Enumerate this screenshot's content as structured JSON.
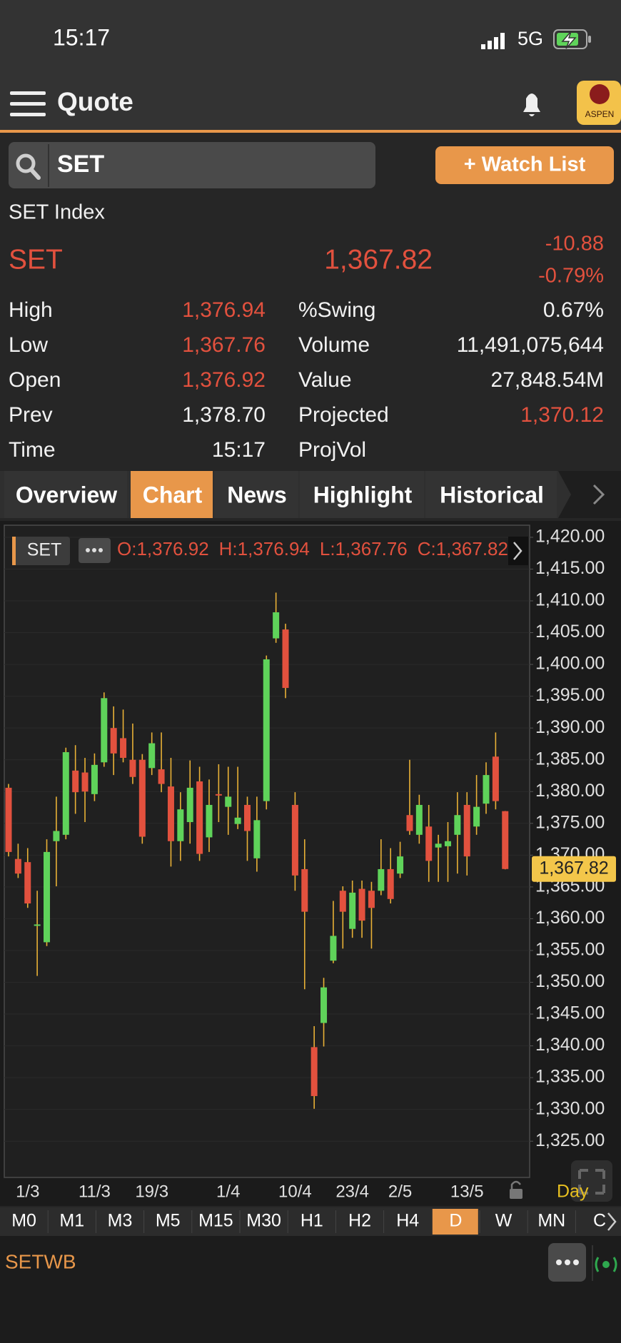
{
  "status_bar": {
    "time": "15:17",
    "network": "5G"
  },
  "header": {
    "title": "Quote",
    "logo": "ASPEN"
  },
  "search": {
    "query": "SET",
    "button": "+ Watch List"
  },
  "quote": {
    "name": "SET Index",
    "symbol": "SET",
    "last": "1,367.82",
    "change": "-10.88",
    "change_pct": "-0.79%"
  },
  "stats": {
    "rows": [
      [
        "High",
        "1,376.94",
        "%Swing",
        "0.67%"
      ],
      [
        "Low",
        "1,367.76",
        "Volume",
        "11,491,075,644"
      ],
      [
        "Open",
        "1,376.92",
        "Value",
        "27,848.54M"
      ],
      [
        "Prev",
        "1,378.70",
        "Projected",
        "1,370.12"
      ],
      [
        "Time",
        "15:17",
        "ProjVol"
      ]
    ]
  },
  "tabs": {
    "items": [
      "Overview",
      "Chart",
      "News",
      "Highlight",
      "Historical"
    ],
    "active": 1
  },
  "chart_data": {
    "type": "candlestick",
    "legend_symbol": "SET",
    "ohlc_labels": [
      "O:1,376.92",
      "H:1,376.94",
      "L:1,367.76",
      "C:1,367.82"
    ],
    "period_label": "Day",
    "categories": [
      null,
      null,
      "1/3",
      null,
      null,
      null,
      null,
      null,
      null,
      "11/3",
      null,
      null,
      null,
      null,
      null,
      "19/3",
      null,
      null,
      null,
      null,
      null,
      null,
      null,
      "1/4",
      null,
      null,
      null,
      null,
      null,
      null,
      "10/4",
      null,
      null,
      null,
      null,
      null,
      "23/4",
      null,
      null,
      null,
      null,
      "2/5",
      null,
      null,
      null,
      null,
      null,
      null,
      "13/5",
      null,
      null,
      null,
      null
    ],
    "open": [
      1380.6,
      1369.4,
      1368.9,
      1358.9,
      1356.3,
      1372.2,
      1373.2,
      1383.3,
      1383.0,
      1379.6,
      1384.6,
      1390.0,
      1388.4,
      1385.0,
      1385.0,
      1383.7,
      1383.5,
      1380.8,
      1372.2,
      1375.2,
      1381.6,
      1372.8,
      1379.6,
      1377.6,
      1374.9,
      1377.9,
      1369.5,
      1378.5,
      1404.1,
      1405.5,
      1377.9,
      1367.8,
      1339.8,
      1343.6,
      1353.4,
      1364.4,
      1358.4,
      1364.7,
      1364.4,
      1364.4,
      1367.8,
      1367.1,
      1376.3,
      1373.2,
      1374.5,
      1371.2,
      1371.4,
      1373.2,
      1377.9,
      1374.5,
      1378.1,
      1385.5,
      1376.92
    ],
    "high": [
      1381.2,
      1371.8,
      1371.1,
      1364.4,
      1372.5,
      1379.2,
      1386.9,
      1387.3,
      1385.3,
      1386.0,
      1395.6,
      1393.4,
      1392.9,
      1390.7,
      1385.9,
      1389.3,
      1389.3,
      1385.3,
      1379.9,
      1384.9,
      1383.9,
      1381.9,
      1384.3,
      1383.9,
      1383.9,
      1379.2,
      1379.2,
      1401.4,
      1411.3,
      1406.4,
      1379.9,
      1372.5,
      1343.1,
      1350.7,
      1362.8,
      1365.1,
      1366.0,
      1366.0,
      1365.8,
      1372.5,
      1371.1,
      1372.1,
      1385.0,
      1379.5,
      1377.9,
      1373.2,
      1375.2,
      1379.9,
      1379.9,
      1382.6,
      1384.6,
      1389.3,
      1376.94
    ],
    "low": [
      1369.8,
      1366.4,
      1361.7,
      1351.0,
      1355.7,
      1365.1,
      1372.5,
      1376.5,
      1375.2,
      1378.5,
      1383.9,
      1382.6,
      1384.6,
      1381.2,
      1371.8,
      1382.6,
      1379.9,
      1368.2,
      1369.1,
      1371.8,
      1369.1,
      1370.5,
      1375.2,
      1373.2,
      1374.1,
      1369.1,
      1367.4,
      1377.2,
      1403.4,
      1394.7,
      1364.4,
      1348.9,
      1330.1,
      1339.9,
      1353.0,
      1355.3,
      1357.0,
      1357.0,
      1355.3,
      1363.7,
      1362.4,
      1366.4,
      1373.2,
      1371.8,
      1365.8,
      1365.8,
      1365.8,
      1367.1,
      1366.8,
      1373.2,
      1376.5,
      1377.2,
      1367.76
    ],
    "close": [
      1370.5,
      1367.1,
      1362.4,
      1359.1,
      1370.5,
      1373.8,
      1386.2,
      1379.9,
      1380.0,
      1384.2,
      1394.7,
      1386.0,
      1385.3,
      1382.3,
      1372.9,
      1387.6,
      1381.2,
      1372.2,
      1377.2,
      1380.6,
      1370.2,
      1377.9,
      1379.4,
      1379.2,
      1375.9,
      1373.8,
      1375.5,
      1400.8,
      1408.2,
      1396.3,
      1366.8,
      1361.1,
      1332.1,
      1349.2,
      1357.3,
      1361.1,
      1364.1,
      1359.7,
      1361.7,
      1367.8,
      1363.1,
      1369.8,
      1373.8,
      1377.9,
      1369.1,
      1371.8,
      1372.2,
      1376.3,
      1369.8,
      1377.6,
      1382.6,
      1378.5,
      1367.82
    ],
    "up_color": "#5fd35a",
    "down_color": "#e2513e",
    "wick_color": "#e9b136",
    "ylim": [
      1319.3,
      1421.9
    ],
    "yticks": [
      {
        "value": 1420,
        "label": "1,420.00"
      },
      {
        "value": 1415,
        "label": "1,415.00"
      },
      {
        "value": 1410,
        "label": "1,410.00"
      },
      {
        "value": 1405,
        "label": "1,405.00"
      },
      {
        "value": 1400,
        "label": "1,400.00"
      },
      {
        "value": 1395,
        "label": "1,395.00"
      },
      {
        "value": 1390,
        "label": "1,390.00"
      },
      {
        "value": 1385,
        "label": "1,385.00"
      },
      {
        "value": 1380,
        "label": "1,380.00"
      },
      {
        "value": 1375,
        "label": "1,375.00"
      },
      {
        "value": 1370,
        "label": "1,370.00"
      },
      {
        "value": 1365,
        "label": "1,365.00"
      },
      {
        "value": 1360,
        "label": "1,360.00"
      },
      {
        "value": 1355,
        "label": "1,355.00"
      },
      {
        "value": 1350,
        "label": "1,350.00"
      },
      {
        "value": 1345,
        "label": "1,345.00"
      },
      {
        "value": 1340,
        "label": "1,340.00"
      },
      {
        "value": 1335,
        "label": "1,335.00"
      },
      {
        "value": 1330,
        "label": "1,330.00"
      },
      {
        "value": 1325,
        "label": "1,325.00"
      }
    ],
    "price_tag": {
      "value": 1367.82,
      "label": "1,367.82"
    },
    "grid": true
  },
  "timeframes": {
    "items": [
      "M0",
      "M1",
      "M3",
      "M5",
      "M15",
      "M30",
      "H1",
      "H2",
      "H4",
      "D",
      "W",
      "MN",
      "C"
    ],
    "active": 9
  },
  "watchlist_bar": {
    "symbol": "SETWB"
  }
}
